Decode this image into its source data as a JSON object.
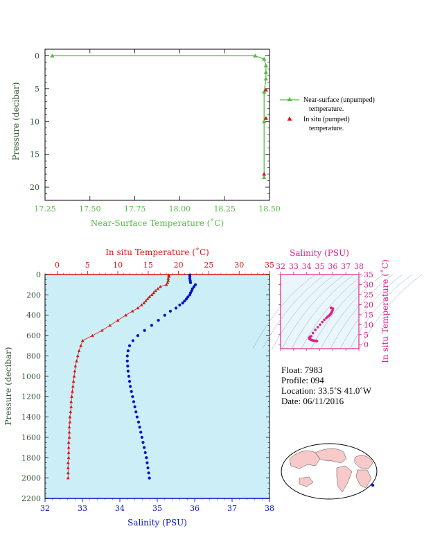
{
  "chart_data": [
    {
      "type": "line",
      "xlabel": "Near-Surface Temperature (˚C)",
      "ylabel": "Pressure (decibar)",
      "xlim": [
        17.25,
        18.5
      ],
      "ylim": [
        22,
        -1
      ],
      "x_ticks": [
        "17.25",
        "17.50",
        "17.75",
        "18.00",
        "18.25",
        "18.50"
      ],
      "y_ticks": [
        "0",
        "5",
        "10",
        "15",
        "20"
      ],
      "series": [
        {
          "name": "Near-surface (unpumped) temperature.",
          "marker": "triangle",
          "color": "#55bb44",
          "points": [
            [
              17.29,
              0.0
            ],
            [
              18.42,
              0.0
            ],
            [
              18.47,
              0.5
            ],
            [
              18.48,
              1.5
            ],
            [
              18.48,
              2.5
            ],
            [
              18.48,
              3.5
            ],
            [
              18.47,
              5.5
            ],
            [
              18.47,
              10.0
            ],
            [
              18.47,
              18.5
            ]
          ]
        },
        {
          "name": "In situ (pumped) temperature.",
          "marker": "triangle",
          "color": "#dd1111",
          "points": [
            [
              18.48,
              5.2
            ],
            [
              18.48,
              9.5
            ],
            [
              18.47,
              18.0
            ]
          ]
        }
      ],
      "legend": [
        {
          "line1": "Near-surface (unpumped)",
          "line2": "temperature."
        },
        {
          "line1": "In situ (pumped)",
          "line2": "temperature."
        }
      ]
    },
    {
      "type": "line",
      "title_top": "In situ Temperature (˚C)",
      "xlabel": "Salinity (PSU)",
      "ylabel": "Pressure (decibar)",
      "temp_ticks": [
        "0",
        "5",
        "10",
        "15",
        "20",
        "25",
        "30",
        "35"
      ],
      "sal_ticks": [
        "32",
        "33",
        "34",
        "35",
        "36",
        "37",
        "38"
      ],
      "pressure_ticks": [
        "0",
        "200",
        "400",
        "600",
        "800",
        "1000",
        "1200",
        "1400",
        "1600",
        "1800",
        "2000",
        "2200"
      ],
      "temp_lim": [
        -2,
        35
      ],
      "sal_lim": [
        32,
        38
      ],
      "pressure_lim": [
        0,
        2200
      ],
      "temperature_profile": [
        [
          18.4,
          5
        ],
        [
          18.4,
          20
        ],
        [
          18.3,
          40
        ],
        [
          18.3,
          60
        ],
        [
          18.2,
          80
        ],
        [
          18.0,
          100
        ],
        [
          17.0,
          120
        ],
        [
          16.6,
          140
        ],
        [
          16.2,
          160
        ],
        [
          15.9,
          180
        ],
        [
          15.6,
          200
        ],
        [
          15.2,
          220
        ],
        [
          14.9,
          240
        ],
        [
          14.6,
          260
        ],
        [
          14.3,
          280
        ],
        [
          13.9,
          300
        ],
        [
          13.3,
          330
        ],
        [
          12.4,
          360
        ],
        [
          11.3,
          400
        ],
        [
          10.0,
          450
        ],
        [
          8.7,
          500
        ],
        [
          7.4,
          550
        ],
        [
          5.8,
          600
        ],
        [
          4.2,
          650
        ],
        [
          3.9,
          700
        ],
        [
          3.6,
          750
        ],
        [
          3.4,
          800
        ],
        [
          3.2,
          850
        ],
        [
          3.0,
          900
        ],
        [
          2.9,
          950
        ],
        [
          2.8,
          1000
        ],
        [
          2.7,
          1050
        ],
        [
          2.6,
          1100
        ],
        [
          2.5,
          1150
        ],
        [
          2.4,
          1200
        ],
        [
          2.3,
          1250
        ],
        [
          2.3,
          1300
        ],
        [
          2.2,
          1350
        ],
        [
          2.1,
          1400
        ],
        [
          2.1,
          1450
        ],
        [
          2.0,
          1500
        ],
        [
          2.0,
          1550
        ],
        [
          2.0,
          1600
        ],
        [
          1.9,
          1650
        ],
        [
          1.9,
          1700
        ],
        [
          1.9,
          1750
        ],
        [
          1.9,
          1800
        ],
        [
          1.8,
          1850
        ],
        [
          1.8,
          1900
        ],
        [
          1.8,
          1950
        ],
        [
          1.8,
          2000
        ]
      ],
      "salinity_profile": [
        [
          35.87,
          5
        ],
        [
          35.87,
          20
        ],
        [
          35.87,
          40
        ],
        [
          35.88,
          60
        ],
        [
          35.89,
          80
        ],
        [
          36.02,
          100
        ],
        [
          35.98,
          120
        ],
        [
          35.94,
          140
        ],
        [
          35.92,
          160
        ],
        [
          35.89,
          180
        ],
        [
          35.87,
          200
        ],
        [
          35.82,
          220
        ],
        [
          35.78,
          240
        ],
        [
          35.73,
          260
        ],
        [
          35.68,
          280
        ],
        [
          35.6,
          300
        ],
        [
          35.5,
          330
        ],
        [
          35.35,
          360
        ],
        [
          35.2,
          400
        ],
        [
          35.03,
          450
        ],
        [
          34.85,
          500
        ],
        [
          34.66,
          550
        ],
        [
          34.48,
          600
        ],
        [
          34.35,
          650
        ],
        [
          34.26,
          700
        ],
        [
          34.22,
          750
        ],
        [
          34.2,
          800
        ],
        [
          34.2,
          850
        ],
        [
          34.21,
          900
        ],
        [
          34.22,
          950
        ],
        [
          34.24,
          1000
        ],
        [
          34.26,
          1050
        ],
        [
          34.28,
          1100
        ],
        [
          34.31,
          1150
        ],
        [
          34.34,
          1200
        ],
        [
          34.37,
          1250
        ],
        [
          34.4,
          1300
        ],
        [
          34.43,
          1350
        ],
        [
          34.46,
          1400
        ],
        [
          34.5,
          1450
        ],
        [
          34.53,
          1500
        ],
        [
          34.56,
          1550
        ],
        [
          34.59,
          1600
        ],
        [
          34.62,
          1650
        ],
        [
          34.65,
          1700
        ],
        [
          34.68,
          1750
        ],
        [
          34.71,
          1800
        ],
        [
          34.73,
          1850
        ],
        [
          34.75,
          1900
        ],
        [
          34.77,
          1950
        ],
        [
          34.79,
          2000
        ]
      ],
      "colors": {
        "temperature": "#dd1111",
        "salinity": "#0011cc",
        "background": "#cceef7"
      }
    },
    {
      "type": "scatter",
      "title": "Salinity (PSU)",
      "ylabel": "In situ Temperature (˚C)",
      "x_ticks": [
        "32",
        "33",
        "34",
        "35",
        "36",
        "37",
        "38"
      ],
      "y_ticks": [
        "0",
        "5",
        "10",
        "15",
        "20",
        "25",
        "30",
        "35"
      ],
      "xlim": [
        32,
        38
      ],
      "ylim": [
        -2,
        35
      ],
      "color": "#dd2288"
    }
  ],
  "info": {
    "float": "Float:  7983",
    "profile": "Profile:  094",
    "location": "Location:  33.5˚S  41.0˚W",
    "date": "Date:  06/11/2016"
  }
}
